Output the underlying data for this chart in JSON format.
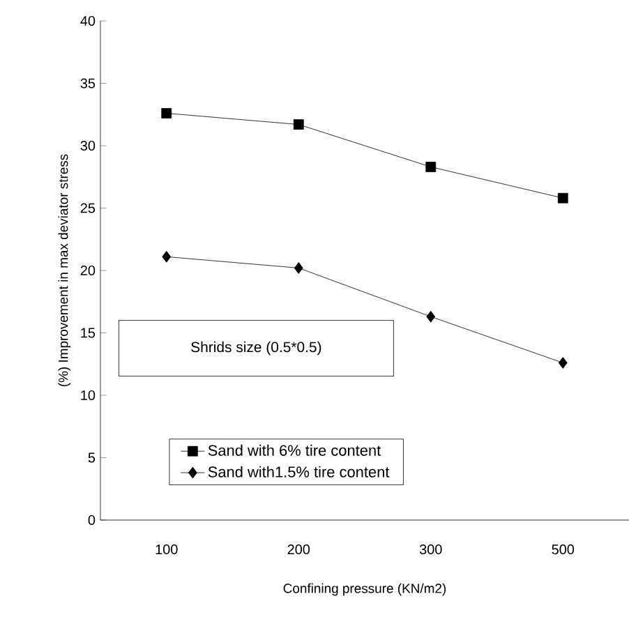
{
  "chart_data": {
    "type": "line",
    "xlabel": "Confining pressure (KN/m2)",
    "ylabel": "(%) Improvement in max deviator stress",
    "categories": [
      "100",
      "200",
      "300",
      "500"
    ],
    "series": [
      {
        "name": "Sand with 6% tire content",
        "color": "#000000",
        "marker": "square",
        "values": [
          32.6,
          31.7,
          28.3,
          25.8
        ]
      },
      {
        "name": "Sand with1.5% tire content",
        "color": "#000000",
        "marker": "diamond",
        "values": [
          21.1,
          20.2,
          16.3,
          12.6
        ]
      }
    ],
    "ylim": [
      0,
      40
    ],
    "yticks": [
      0,
      5,
      10,
      15,
      20,
      25,
      30,
      35,
      40
    ],
    "annotations": [
      "Shrids size (0.5*0.5)"
    ],
    "legend": "bottom left",
    "line_style": "solid"
  }
}
